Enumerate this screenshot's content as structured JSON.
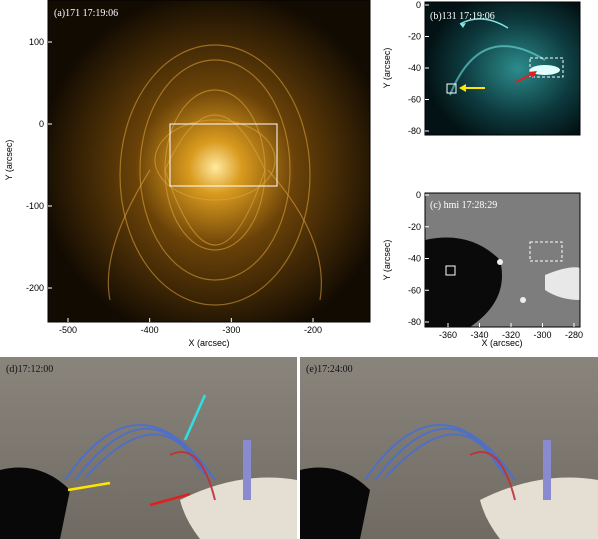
{
  "panels": [
    {
      "label": "(a)171 17:19:06",
      "x_label": "X (arcsec)",
      "y_label": "Y (arcsec)",
      "x_ticks": [
        -500,
        -400,
        -300,
        -200
      ],
      "y_ticks": [
        100,
        0,
        -100,
        -200
      ]
    },
    {
      "label": "(b)131 17:19:06",
      "y_label": "Y (arcsec)",
      "y_ticks": [
        0,
        -20,
        -40,
        -60,
        -80
      ]
    },
    {
      "label": "(c) hmi 17:28:29",
      "x_label": "X (arcsec)",
      "y_label": "Y (arcsec)",
      "x_ticks": [
        -360,
        -340,
        -320,
        -300,
        -280
      ],
      "y_ticks": [
        0,
        -20,
        -40,
        -60,
        -80
      ]
    },
    {
      "label": "(d)17:12:00"
    },
    {
      "label": "(e)17:24:00"
    }
  ]
}
